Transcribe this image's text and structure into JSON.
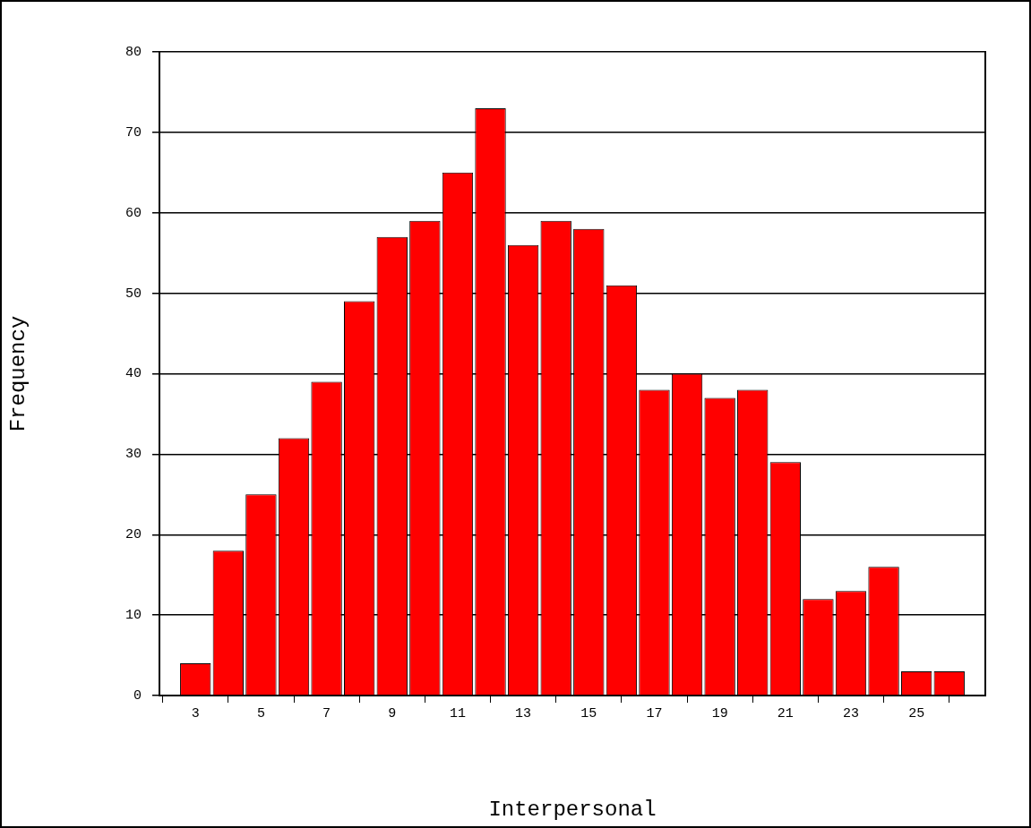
{
  "chart_data": {
    "type": "histogram",
    "xlabel": "Interpersonal",
    "ylabel": "Frequency",
    "bins": [
      2.5,
      3.5,
      4.5,
      5.5,
      6.5,
      7.5,
      8.5,
      9.5,
      10.5,
      11.5,
      12.5,
      13.5,
      14.5,
      15.5,
      16.5,
      17.5,
      18.5,
      19.5,
      20.5,
      21.5,
      22.5,
      23.5,
      24.5,
      25.5,
      26.5
    ],
    "values": [
      4,
      18,
      25,
      32,
      39,
      49,
      57,
      59,
      65,
      73,
      56,
      59,
      58,
      51,
      38,
      40,
      37,
      38,
      29,
      12,
      13,
      16,
      3,
      3
    ],
    "color": "#ff0000",
    "xlim": [
      1.9,
      27.1
    ],
    "xticks": [
      3,
      5,
      7,
      9,
      11,
      13,
      15,
      17,
      19,
      21,
      23,
      25
    ],
    "ylim": [
      0,
      80
    ],
    "yticks": [
      0,
      10,
      20,
      30,
      40,
      50,
      60,
      70,
      80
    ],
    "grid": "y",
    "legend": false
  }
}
